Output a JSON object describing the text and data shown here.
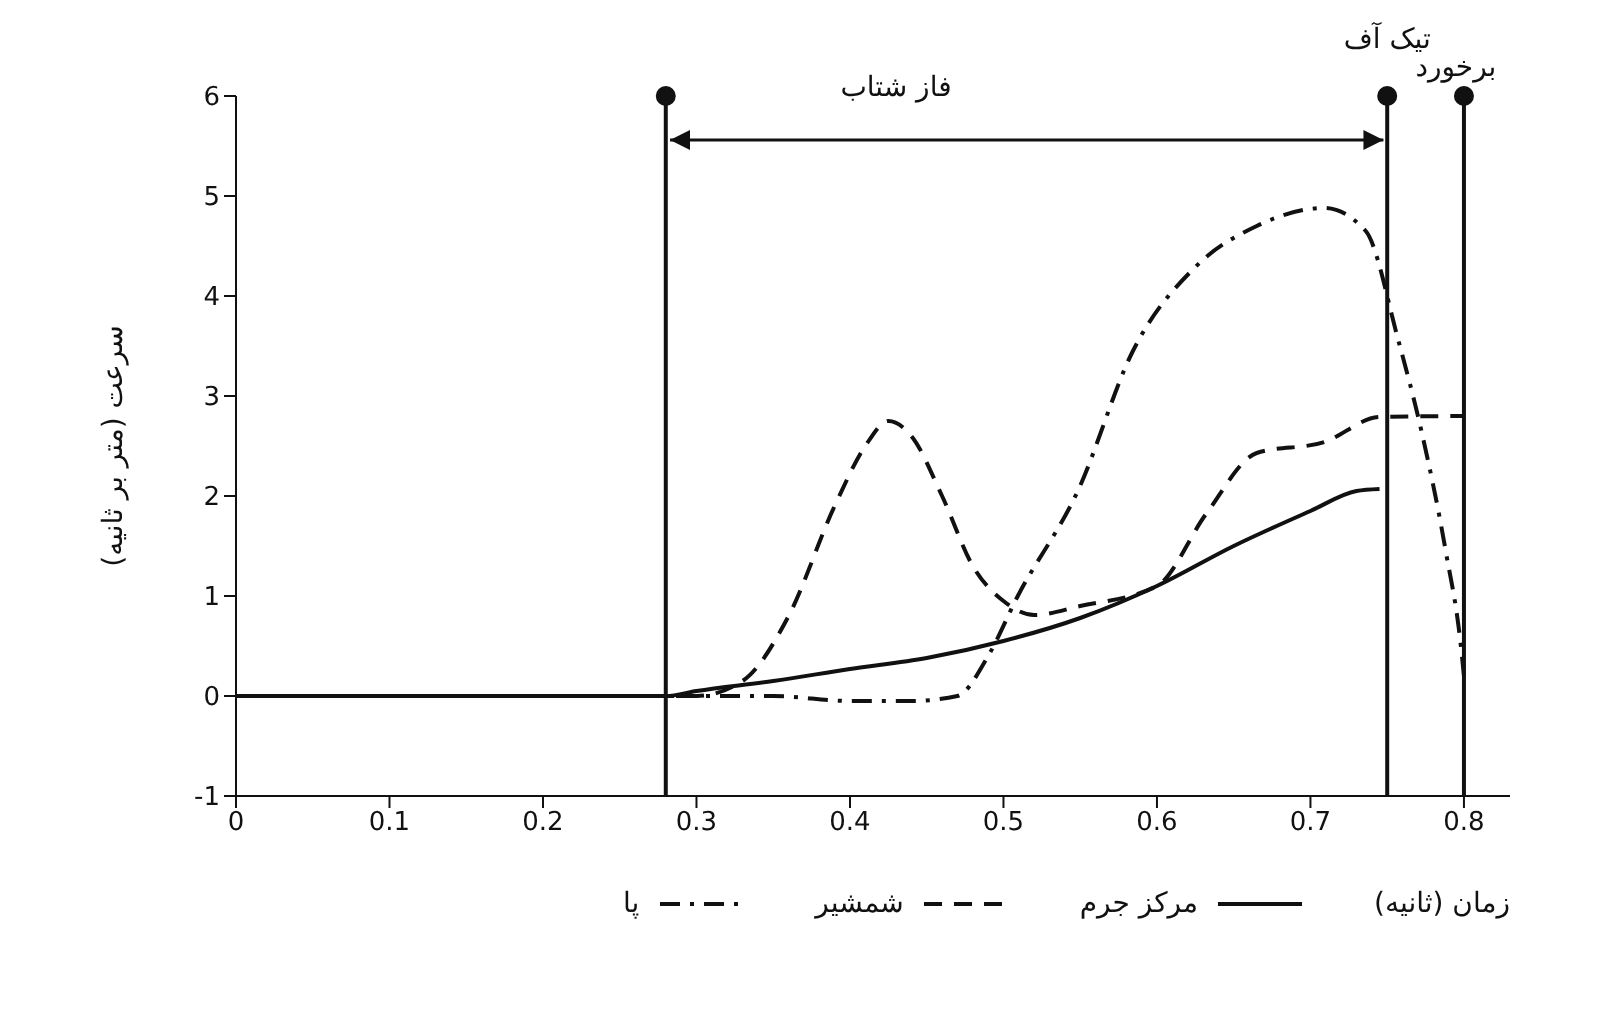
{
  "chart_data": {
    "type": "line",
    "xlabel": "زمان (ثانیه)",
    "ylabel": "سرعت (متر بر ثانیه)",
    "xlim": [
      0,
      0.83
    ],
    "xticks": [
      0,
      0.1,
      0.2,
      0.3,
      0.4,
      0.5,
      0.6,
      0.7,
      0.8
    ],
    "ylim": [
      -1,
      6
    ],
    "yticks": [
      -1,
      0,
      1,
      2,
      3,
      4,
      5,
      6
    ],
    "legend": "bottom",
    "marker": "none",
    "series": [
      {
        "name": "مرکز جرم",
        "color": "#111111",
        "line_style": "solid",
        "x": [
          0,
          0.28,
          0.3,
          0.35,
          0.4,
          0.45,
          0.5,
          0.55,
          0.6,
          0.65,
          0.7,
          0.73,
          0.745
        ],
        "values": [
          0,
          0,
          0.05,
          0.15,
          0.27,
          0.38,
          0.55,
          0.78,
          1.1,
          1.5,
          1.85,
          2.05,
          2.07
        ]
      },
      {
        "name": "شمشیر",
        "color": "#111111",
        "line_style": "dashed",
        "x": [
          0,
          0.3,
          0.33,
          0.36,
          0.39,
          0.41,
          0.425,
          0.44,
          0.46,
          0.48,
          0.5,
          0.52,
          0.55,
          0.6,
          0.632,
          0.665,
          0.709,
          0.745,
          0.8
        ],
        "values": [
          0,
          0,
          0.15,
          0.8,
          1.9,
          2.5,
          2.75,
          2.6,
          2.0,
          1.3,
          0.95,
          0.81,
          0.9,
          1.1,
          1.82,
          2.43,
          2.54,
          2.79,
          2.8
        ]
      },
      {
        "name": "پا",
        "color": "#111111",
        "line_style": "dashdot",
        "x": [
          0,
          0.35,
          0.4,
          0.44,
          0.47,
          0.49,
          0.509,
          0.549,
          0.584,
          0.625,
          0.665,
          0.709,
          0.736,
          0.757,
          0.772,
          0.788,
          0.798,
          0.8
        ],
        "values": [
          0,
          0,
          -0.05,
          -0.05,
          0,
          0.4,
          0.99,
          2.07,
          3.44,
          4.29,
          4.7,
          4.88,
          4.65,
          3.57,
          2.67,
          1.46,
          0.5,
          0.2
        ]
      }
    ],
    "ref_lines": [
      {
        "axis": "x",
        "value": 0.28,
        "label": null,
        "color": "#111111"
      },
      {
        "axis": "x",
        "value": 0.75,
        "label": "تیک آف",
        "color": "#111111"
      },
      {
        "axis": "x",
        "value": 0.8,
        "label": "برخورد",
        "color": "#111111"
      }
    ],
    "annotations": [
      "فاز شتاب"
    ]
  }
}
